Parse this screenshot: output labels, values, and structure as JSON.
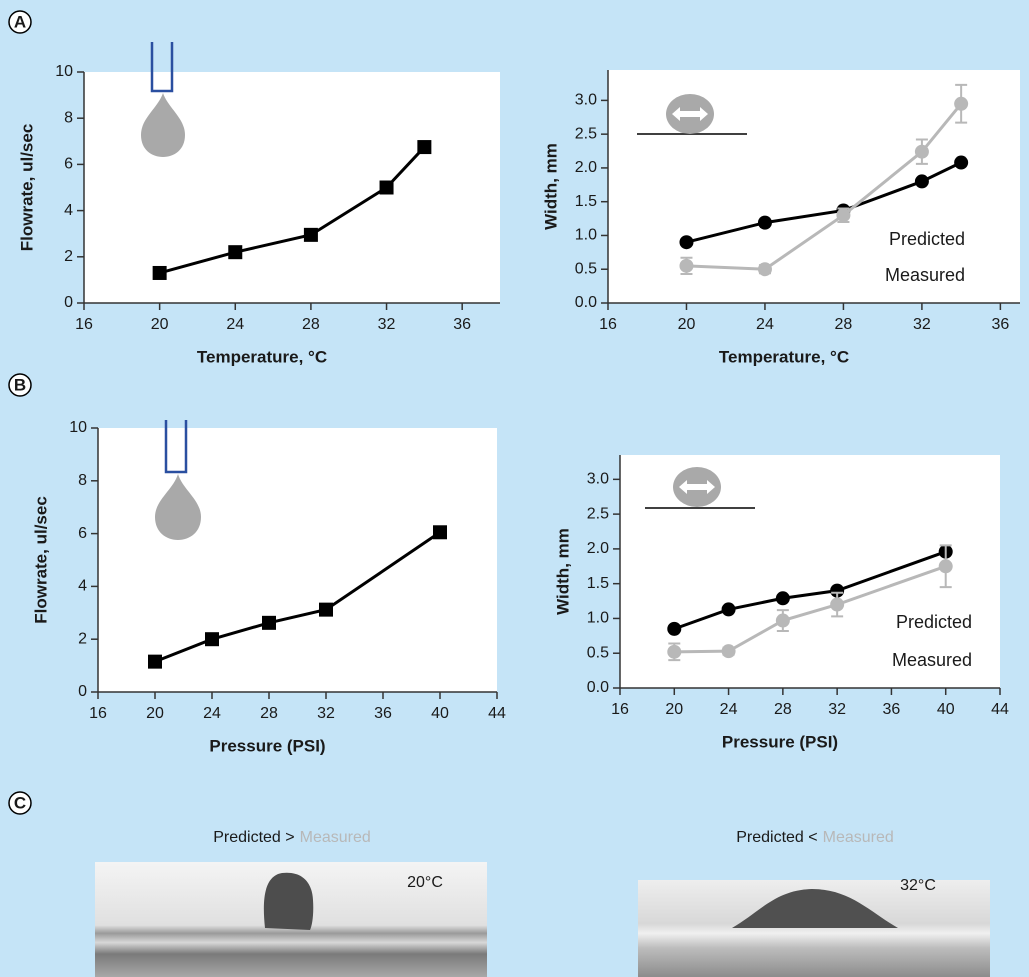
{
  "panel_labels": [
    "A",
    "B",
    "C"
  ],
  "chart_data": [
    {
      "type": "line",
      "x": [
        20,
        24,
        28,
        32,
        34
      ],
      "series": [
        {
          "name": null,
          "color": "#000000",
          "marker": "square",
          "values": [
            1.3,
            2.2,
            2.95,
            5.0,
            6.75
          ]
        }
      ],
      "xlim": [
        16,
        38
      ],
      "xticks": [
        16,
        20,
        24,
        28,
        32,
        36
      ],
      "ylim": [
        0,
        10
      ],
      "yticks": [
        0,
        2,
        4,
        6,
        8,
        10
      ],
      "x_label": "Temperature, °C",
      "y_label": "Flowrate, ul/sec"
    },
    {
      "type": "line",
      "x": [
        20,
        24,
        28,
        32,
        34
      ],
      "series": [
        {
          "name": "Predicted",
          "color": "#000000",
          "marker": "circle",
          "values": [
            0.9,
            1.19,
            1.37,
            1.8,
            2.08
          ]
        },
        {
          "name": "Measured",
          "color": "#b8b8b8",
          "marker": "circle",
          "values": [
            0.55,
            0.5,
            1.3,
            2.24,
            2.95
          ],
          "errors": [
            0.12,
            0.06,
            0.1,
            0.18,
            0.28
          ]
        }
      ],
      "xlim": [
        16,
        37
      ],
      "xticks": [
        16,
        20,
        24,
        28,
        32,
        36
      ],
      "ylim": [
        0,
        3.45
      ],
      "yticks": [
        {
          "value": 0,
          "label": "0.0"
        },
        0.5,
        {
          "value": 1,
          "label": "1.0"
        },
        1.5,
        {
          "value": 2,
          "label": "2.0"
        },
        2.5,
        {
          "value": 3,
          "label": "3.0"
        }
      ],
      "x_label": "Temperature, °C",
      "y_label": "Width, mm"
    },
    {
      "type": "line",
      "x": [
        20,
        24,
        28,
        32,
        40
      ],
      "series": [
        {
          "name": null,
          "color": "#000000",
          "marker": "square",
          "values": [
            1.15,
            2.0,
            2.62,
            3.12,
            6.05
          ]
        }
      ],
      "xlim": [
        16,
        44
      ],
      "xticks": [
        16,
        20,
        24,
        28,
        32,
        36,
        40,
        44
      ],
      "ylim": [
        0,
        10
      ],
      "yticks": [
        0,
        2,
        4,
        6,
        8,
        10
      ],
      "x_label": "Pressure (PSI)",
      "y_label": "Flowrate, ul/sec"
    },
    {
      "type": "line",
      "x": [
        20,
        24,
        28,
        32,
        40
      ],
      "series": [
        {
          "name": "Predicted",
          "color": "#000000",
          "marker": "circle",
          "values": [
            0.85,
            1.13,
            1.29,
            1.4,
            1.96
          ]
        },
        {
          "name": "Measured",
          "color": "#b8b8b8",
          "marker": "circle",
          "values": [
            0.52,
            0.53,
            0.97,
            1.2,
            1.75
          ],
          "errors": [
            0.12,
            0.05,
            0.15,
            0.17,
            0.3
          ]
        }
      ],
      "xlim": [
        16,
        44
      ],
      "xticks": [
        16,
        20,
        24,
        28,
        32,
        36,
        40,
        44
      ],
      "ylim": [
        0,
        3.35
      ],
      "yticks": [
        {
          "value": 0,
          "label": "0.0"
        },
        0.5,
        {
          "value": 1,
          "label": "1.0"
        },
        1.5,
        {
          "value": 2,
          "label": "2.0"
        },
        2.5,
        {
          "value": 3,
          "label": "3.0"
        }
      ],
      "x_label": "Pressure (PSI)",
      "y_label": "Width, mm"
    }
  ],
  "panel_c": {
    "captions": [
      {
        "left": "Predicted >",
        "right": "Measured"
      },
      {
        "left": "Predicted <",
        "right": "Measured"
      }
    ],
    "photo_labels": [
      "20°C",
      "32°C"
    ]
  }
}
